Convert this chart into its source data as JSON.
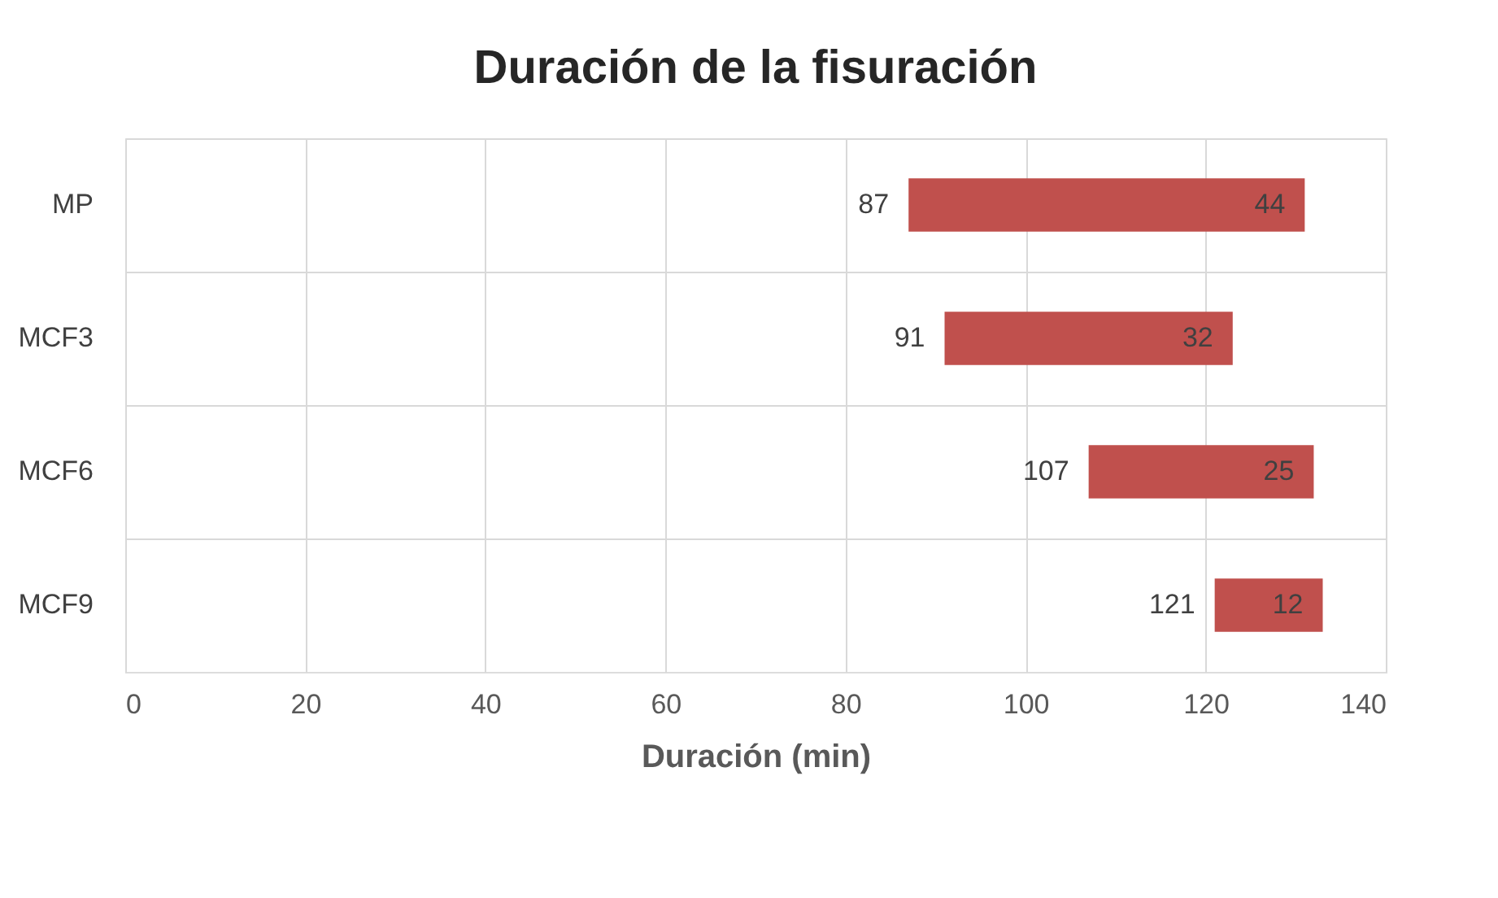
{
  "chart_data": {
    "type": "bar",
    "orientation": "horizontal",
    "title": "Duración de la fisuración",
    "xlabel": "Duración (min)",
    "categories": [
      "MP",
      "MCF3",
      "MCF6",
      "MCF9"
    ],
    "base": [
      87,
      91,
      107,
      121
    ],
    "values": [
      44,
      32,
      25,
      12
    ],
    "value_labels": [
      "44",
      "32",
      "25",
      "12"
    ],
    "color": "#c0504d",
    "xlim": [
      0,
      140
    ],
    "xticks": [
      0,
      20,
      40,
      60,
      80,
      100,
      120,
      140
    ],
    "grid": true,
    "annotations": [
      {
        "text": "87",
        "x": 87,
        "y": "MP"
      },
      {
        "text": "91",
        "x": 91,
        "y": "MCF3"
      },
      {
        "text": "107",
        "x": 107,
        "y": "MCF6"
      },
      {
        "text": "121",
        "x": 121,
        "y": "MCF9"
      }
    ]
  }
}
